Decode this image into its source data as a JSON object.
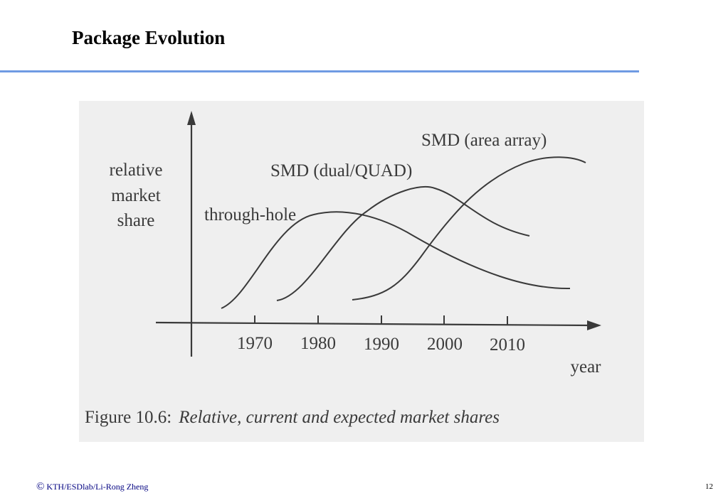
{
  "slide": {
    "title": "Package Evolution",
    "footer_symbol": "©",
    "footer_text": "KTH/ESDlab/Li-Rong Zheng",
    "page_number": "12"
  },
  "figure": {
    "y_axis_label_lines": [
      "relative",
      "market",
      "share"
    ],
    "x_axis_label": "year",
    "x_ticks": [
      "1970",
      "1980",
      "1990",
      "2000",
      "2010"
    ],
    "curves": [
      {
        "label": "through-hole"
      },
      {
        "label": "SMD (dual/QUAD)"
      },
      {
        "label": "SMD (area array)"
      }
    ],
    "caption_prefix": "Figure 10.6:",
    "caption_text": "Relative, current and expected market shares",
    "colors": {
      "ink": "#3a3a3a",
      "panel": "#efefef",
      "rule": "#6f9be3"
    }
  }
}
